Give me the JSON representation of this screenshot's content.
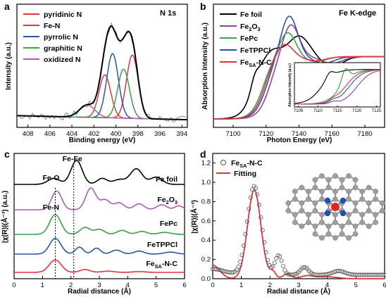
{
  "chart_data": [
    {
      "panel": "a",
      "type": "line",
      "title": "N 1s",
      "xlabel": "Binding energy (eV)",
      "ylabel": "Intensity (a.u.)",
      "xlim": [
        409,
        393.5
      ],
      "x_ticks": [
        408,
        406,
        404,
        402,
        400,
        398,
        396,
        394
      ],
      "legend": "top-left",
      "series": [
        {
          "name": "pyridinic N",
          "color": "#e3343d",
          "center": 398.5,
          "height": 0.62,
          "width": 0.75
        },
        {
          "name": "Fe-N",
          "color": "#d6403f",
          "center": 401.0,
          "height": 0.42,
          "width": 0.75
        },
        {
          "name": "pyrrolic N",
          "color": "#2b56a8",
          "center": 400.3,
          "height": 0.63,
          "width": 0.75
        },
        {
          "name": "graphitic N",
          "color": "#36a24a",
          "center": 399.3,
          "height": 0.48,
          "width": 0.75
        },
        {
          "name": "oxidized N",
          "color": "#b05bb0",
          "center": 402.6,
          "height": 0.12,
          "width": 1.0
        }
      ],
      "envelope_color": "#000000",
      "raw_color": "#888888"
    },
    {
      "panel": "b",
      "type": "line",
      "title": "Fe K-edge",
      "xlabel": "Photon Energy (eV)",
      "ylabel": "Absorption Intensity (a.u.)",
      "xlim": [
        7088,
        7192
      ],
      "x_ticks": [
        7100,
        7120,
        7140,
        7160,
        7180
      ],
      "legend": "top-left",
      "series": [
        {
          "name": "Fe foil",
          "color": "#000000"
        },
        {
          "name": "Fe2O3",
          "name_main": "Fe",
          "name_sub": "2",
          "name_tail": "O",
          "name_sub2": "3",
          "color": "#9b3d9b"
        },
        {
          "name": "FePc",
          "color": "#36a24a"
        },
        {
          "name": "FeTPPCl",
          "color": "#2b56a8"
        },
        {
          "name": "FeSA-N-C",
          "name_main": "Fe",
          "name_sub": "SA",
          "name_tail": "-N-C",
          "color": "#e3343d"
        }
      ],
      "inset": {
        "ylabel": "Absorption Intensity (a.u.)",
        "xlim": [
          7104,
          7126
        ],
        "x_ticks": [
          7105,
          7110,
          7115,
          7120,
          7125
        ]
      }
    },
    {
      "panel": "c",
      "type": "line",
      "xlabel": "Radial distance (Å)",
      "ylabel": "|χ(R)|(Å⁻³) (a.u.)",
      "xlim": [
        0,
        6
      ],
      "x_ticks": [
        0,
        1,
        2,
        3,
        4,
        5,
        6
      ],
      "annotations": [
        {
          "text": "Fe-Fe",
          "x": 2.1
        },
        {
          "text": "Fe-O",
          "x": 1.45
        },
        {
          "text": "Fe-N",
          "x": 1.45
        }
      ],
      "series": [
        {
          "name": "Fe foil",
          "color": "#000000"
        },
        {
          "name": "Fe2O3",
          "name_main": "Fe",
          "name_sub": "2",
          "name_tail": "O",
          "name_sub2": "3",
          "color": "#b05bb0"
        },
        {
          "name": "FePc",
          "color": "#36a24a"
        },
        {
          "name": "FeTPPCl",
          "color": "#2b56a8"
        },
        {
          "name": "FeSA-N-C",
          "name_main": "Fe",
          "name_sub": "SA",
          "name_tail": "-N-C",
          "color": "#e3343d"
        }
      ]
    },
    {
      "panel": "d",
      "type": "line",
      "xlabel": "Radial distance (Å)",
      "ylabel": "|χ(R)|(Å⁻³)",
      "xlim": [
        0,
        6
      ],
      "ylim": [
        0,
        1.3
      ],
      "x_ticks": [
        0,
        1,
        2,
        3,
        4,
        5,
        6
      ],
      "y_ticks": [
        0.0,
        0.2,
        0.4,
        0.6,
        0.8,
        1.0,
        1.2
      ],
      "legend": "top-left",
      "series": [
        {
          "name": "FeSA-N-C",
          "name_main": "Fe",
          "name_sub": "SA",
          "name_tail": "-N-C",
          "color": "#555555",
          "style": "circles"
        },
        {
          "name": "Fitting",
          "color": "#e3343d",
          "style": "line"
        }
      ]
    }
  ],
  "panel_labels": [
    "a",
    "b",
    "c",
    "d"
  ]
}
